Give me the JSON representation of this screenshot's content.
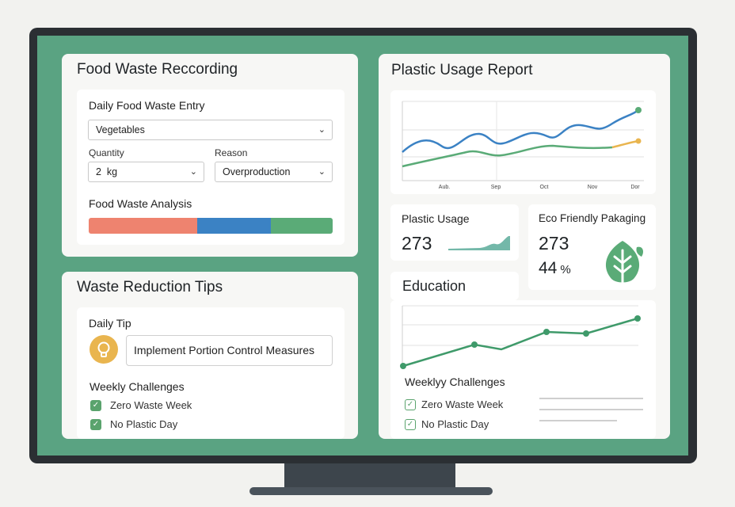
{
  "food_waste": {
    "title": "Food Waste Reccording",
    "entry_heading": "Daily Food Waste Entry",
    "food_type": "Vegetables",
    "quantity_label": "Quantity",
    "quantity_value": "2  kg",
    "reason_label": "Reason",
    "reason_value": "Overproduction",
    "analysis_heading": "Food Waste Analysis",
    "analysis_segments": [
      {
        "name": "segment-1",
        "color": "#ee836f",
        "share": 0.45
      },
      {
        "name": "segment-2",
        "color": "#3b82c4",
        "share": 0.3
      },
      {
        "name": "segment-3",
        "color": "#5aab77",
        "share": 0.25
      }
    ]
  },
  "waste_tips": {
    "title": "Waste Reduction Tips",
    "daily_tip_label": "Daily Tip",
    "daily_tip_text": "Implement Portion Control Measures",
    "challenges_heading": "Weekly Challenges",
    "challenges": [
      "Zero Waste Week",
      "No Plastic Day"
    ]
  },
  "plastic_report": {
    "title": "Plastic Usage Report",
    "x_labels": [
      "Aub.",
      "Sep",
      "Oct",
      "Nov",
      "Dor"
    ],
    "colors": {
      "blue": "#3b82c4",
      "green": "#5aab77",
      "yellow": "#e9b54f"
    }
  },
  "plastic_usage": {
    "label": "Plastic Usage",
    "value": "273"
  },
  "eco_packaging": {
    "label": "Eco Friendly Pakaging",
    "value": "273",
    "percent": "44",
    "percent_sign": "%"
  },
  "education": {
    "title": "Education",
    "challenges_heading": "Weeklyy Challenges",
    "challenges": [
      "Zero Waste Week",
      "No Plastic Day"
    ]
  },
  "icons": [
    "chevron-down-icon",
    "lightbulb-icon",
    "checkmark-icon",
    "leaf-icon"
  ]
}
